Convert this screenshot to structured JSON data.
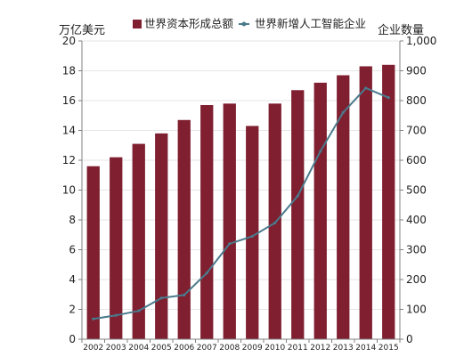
{
  "chart_data": {
    "type": "bar+line",
    "categories": [
      "2002",
      "2003",
      "2004",
      "2005",
      "2006",
      "2007",
      "2008",
      "2009",
      "2010",
      "2011",
      "2012",
      "2013",
      "2014",
      "2015"
    ],
    "series": [
      {
        "name": "世界资本形成总额",
        "type": "bar",
        "axis": "left",
        "color": "#7f1f30",
        "values": [
          11.6,
          12.2,
          13.1,
          13.8,
          14.7,
          15.7,
          15.8,
          14.3,
          15.8,
          16.7,
          17.2,
          17.7,
          18.3,
          18.4
        ]
      },
      {
        "name": "世界新增人工智能企业",
        "type": "line",
        "axis": "right",
        "color": "#4a7a8c",
        "values": [
          68,
          80,
          95,
          138,
          148,
          222,
          320,
          345,
          390,
          480,
          630,
          760,
          842,
          810
        ]
      }
    ],
    "ylabel_left": "万亿美元",
    "ylabel_right": "企业数量",
    "ylim_left": [
      0,
      20
    ],
    "ylim_right": [
      0,
      1000
    ],
    "yticks_left": [
      "0",
      "2",
      "4",
      "6",
      "8",
      "10",
      "12",
      "14",
      "16",
      "18",
      "20"
    ],
    "yticks_right": [
      "0",
      "100",
      "200",
      "300",
      "400",
      "500",
      "600",
      "700",
      "800",
      "900",
      "1,000"
    ],
    "grid": true,
    "legend_position": "top"
  }
}
